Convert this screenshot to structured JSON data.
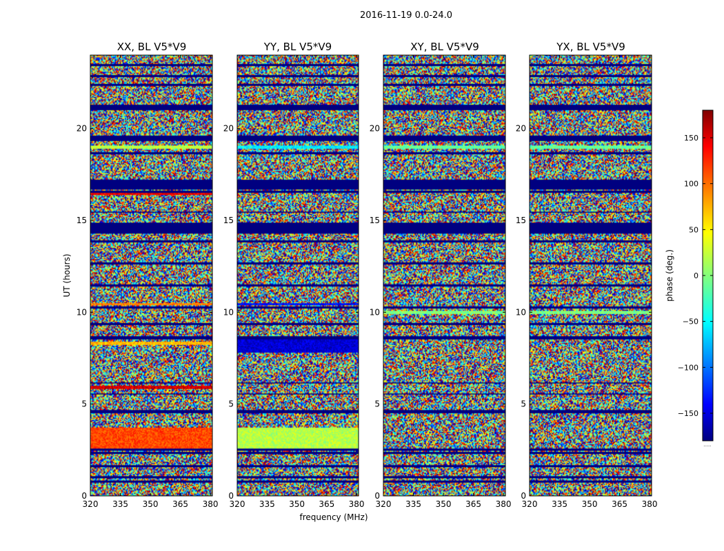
{
  "chart_data": {
    "type": "heatmap",
    "suptitle": "2016-11-19 0.0-24.0",
    "xlabel": "frequency (MHz)",
    "ylabel": "UT (hours)",
    "xlim": [
      320,
      381
    ],
    "ylim": [
      0,
      24
    ],
    "xticks": [
      320,
      335,
      350,
      365,
      380
    ],
    "xtick_labels": [
      "320",
      "335",
      "350",
      "365",
      "380"
    ],
    "yticks": [
      0,
      5,
      10,
      15,
      20
    ],
    "ytick_labels": [
      "0",
      "5",
      "10",
      "15",
      "20"
    ],
    "panels": [
      {
        "title": "XX, BL V5*V9"
      },
      {
        "title": "YY, BL V5*V9"
      },
      {
        "title": "XY, BL V5*V9"
      },
      {
        "title": "YX, BL V5*V9"
      }
    ],
    "colorbar": {
      "label": "phase (deg.)",
      "range": [
        -180,
        180
      ],
      "ticks": [
        150,
        100,
        50,
        0,
        -50,
        -100,
        -150
      ],
      "tick_labels": [
        "150",
        "100",
        "50",
        "0",
        "−50",
        "−100",
        "−150"
      ],
      "colormap": "jet",
      "colormap_stops": [
        "#00007f",
        "#0000ff",
        "#00ffff",
        "#ffff00",
        "#ff0000",
        "#7f0000"
      ],
      "footer": "......"
    },
    "flagged_phase": -180,
    "flagged_ut_bands": [
      [
        0.7,
        0.85
      ],
      [
        0.95,
        1.05
      ],
      [
        1.55,
        1.65
      ],
      [
        2.3,
        2.4
      ],
      [
        2.45,
        2.55
      ],
      [
        4.5,
        4.65
      ],
      [
        5.5,
        5.6
      ],
      [
        6.1,
        6.2
      ],
      [
        8.5,
        8.7
      ],
      [
        9.3,
        9.4
      ],
      [
        10.2,
        10.3
      ],
      [
        11.4,
        11.5
      ],
      [
        12.6,
        12.7
      ],
      [
        13.8,
        13.9
      ],
      [
        14.3,
        14.9
      ],
      [
        15.4,
        15.5
      ],
      [
        16.5,
        16.6
      ],
      [
        16.7,
        17.2
      ],
      [
        18.6,
        18.7
      ],
      [
        19.3,
        19.6
      ],
      [
        21.0,
        21.3
      ],
      [
        22.3,
        22.45
      ],
      [
        22.8,
        22.9
      ],
      [
        23.4,
        23.5
      ]
    ],
    "coherent_ut_bands": [
      {
        "panel": 0,
        "ut": [
          2.5,
          3.7
        ],
        "phase": 110
      },
      {
        "panel": 0,
        "ut": [
          5.8,
          6.0
        ],
        "phase": 150
      },
      {
        "panel": 0,
        "ut": [
          8.2,
          8.4
        ],
        "phase": 70
      },
      {
        "panel": 0,
        "ut": [
          10.4,
          10.5
        ],
        "phase": 90
      },
      {
        "panel": 0,
        "ut": [
          16.4,
          16.5
        ],
        "phase": 140
      },
      {
        "panel": 0,
        "ut": [
          18.9,
          19.1
        ],
        "phase": 20
      },
      {
        "panel": 1,
        "ut": [
          2.5,
          3.7
        ],
        "phase": 20
      },
      {
        "panel": 1,
        "ut": [
          7.8,
          8.6
        ],
        "phase": -150
      },
      {
        "panel": 1,
        "ut": [
          10.4,
          10.5
        ],
        "phase": -130
      },
      {
        "panel": 1,
        "ut": [
          18.9,
          19.1
        ],
        "phase": -50
      },
      {
        "panel": 2,
        "ut": [
          9.9,
          10.1
        ],
        "phase": 0
      },
      {
        "panel": 2,
        "ut": [
          18.9,
          19.1
        ],
        "phase": -10
      },
      {
        "panel": 3,
        "ut": [
          9.9,
          10.1
        ],
        "phase": 0
      },
      {
        "panel": 3,
        "ut": [
          18.9,
          19.1
        ],
        "phase": -10
      }
    ]
  }
}
